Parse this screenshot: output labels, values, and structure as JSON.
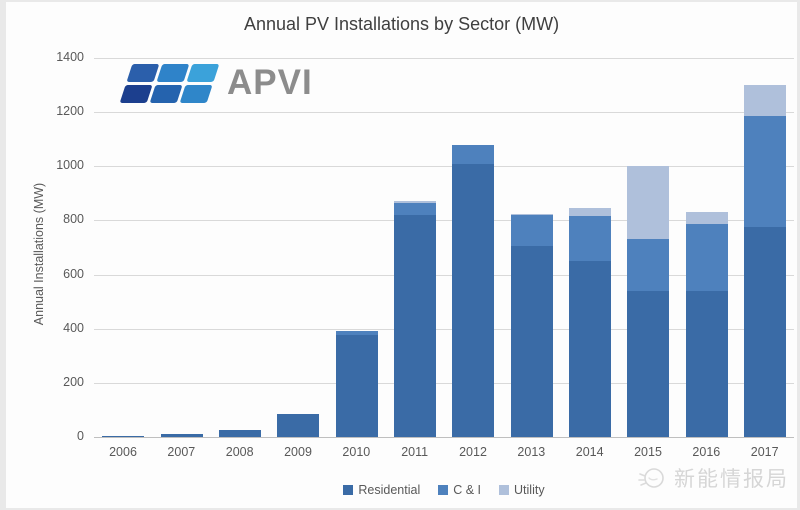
{
  "title": "Annual PV Installations by Sector (MW)",
  "logo": {
    "text": "APVI",
    "tile_colors": [
      "#2b5fab",
      "#2f83c9",
      "#3ba2da",
      "#1c3f8e",
      "#2563ae",
      "#2f86c9"
    ]
  },
  "watermark": {
    "text": "新能情报局"
  },
  "chart_data": {
    "type": "bar",
    "stacked": true,
    "title": "Annual PV Installations by Sector (MW)",
    "ylabel": "Annual Installations (MW)",
    "xlabel": "",
    "ylim": [
      0,
      1400
    ],
    "ytick_step": 200,
    "grid": true,
    "legend_position": "bottom",
    "categories": [
      "2006",
      "2007",
      "2008",
      "2009",
      "2010",
      "2011",
      "2012",
      "2013",
      "2014",
      "2015",
      "2016",
      "2017"
    ],
    "series": [
      {
        "name": "Residential",
        "color": "#3a6ba6",
        "values": [
          2,
          10,
          25,
          85,
          375,
          820,
          1010,
          705,
          650,
          540,
          540,
          775
        ]
      },
      {
        "name": "C & I",
        "color": "#4e81bd",
        "values": [
          0,
          0,
          0,
          0,
          15,
          45,
          70,
          115,
          165,
          190,
          245,
          410
        ]
      },
      {
        "name": "Utility",
        "color": "#afc0db",
        "values": [
          0,
          0,
          0,
          0,
          0,
          5,
          0,
          5,
          30,
          270,
          45,
          115
        ]
      }
    ],
    "totals": [
      2,
      10,
      25,
      85,
      390,
      870,
      1080,
      825,
      845,
      1000,
      830,
      1300
    ]
  }
}
